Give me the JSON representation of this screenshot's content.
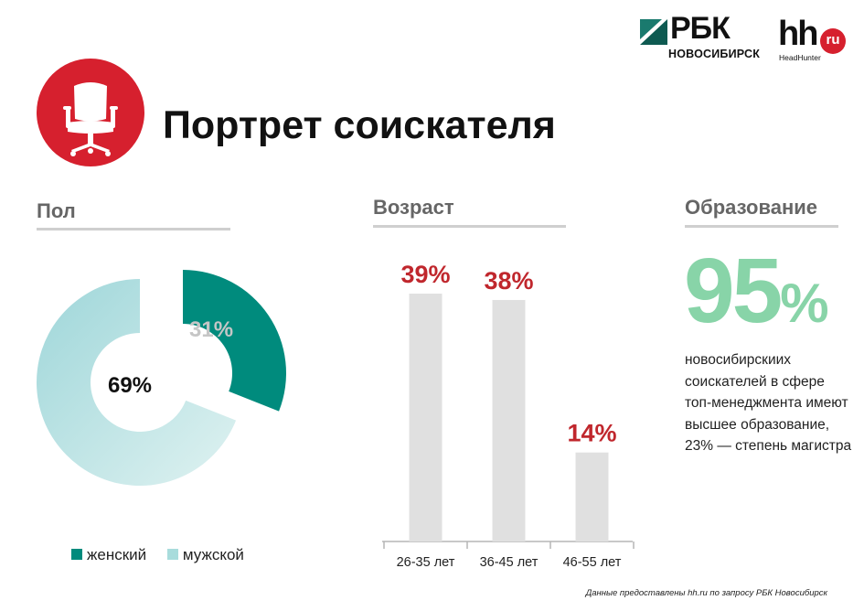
{
  "logos": {
    "rbk_name": "РБК",
    "rbk_city": "НОВОСИБИРСК",
    "hh_name": "hh",
    "hh_ru": "ru",
    "hh_sub": "HeadHunter"
  },
  "page_title": "Портрет соискателя",
  "icons": {
    "header": "office-chair-icon"
  },
  "colors": {
    "accent_red": "#d6202e",
    "female": "#008b7d",
    "male": "#a8dcdc",
    "bar": "#e0e0e0",
    "bar_label": "#c0272d",
    "edu_big": "#88d4a8"
  },
  "sections": {
    "gender": "Пол",
    "age": "Возраст",
    "education": "Образование"
  },
  "chart_data": [
    {
      "type": "pie",
      "title": "Пол",
      "labels": [
        "женский",
        "мужской"
      ],
      "values": [
        31,
        69
      ],
      "value_labels": [
        "31%",
        "69%"
      ],
      "legend": "bottom"
    },
    {
      "type": "bar",
      "title": "Возраст",
      "categories": [
        "26-35 лет",
        "36-45 лет",
        "46-55 лет"
      ],
      "values": [
        39,
        38,
        14
      ],
      "value_labels": [
        "39%",
        "38%",
        "14%"
      ],
      "ylim": [
        0,
        40
      ]
    }
  ],
  "education": {
    "big_number": "95",
    "big_percent": "%",
    "text": "новосибирскиих соискателей в сфере топ-менеджмента имеют высшее образование, 23% — степень магистра"
  },
  "source": "Данные предоставлены hh.ru по запросу РБК Новосибирск"
}
